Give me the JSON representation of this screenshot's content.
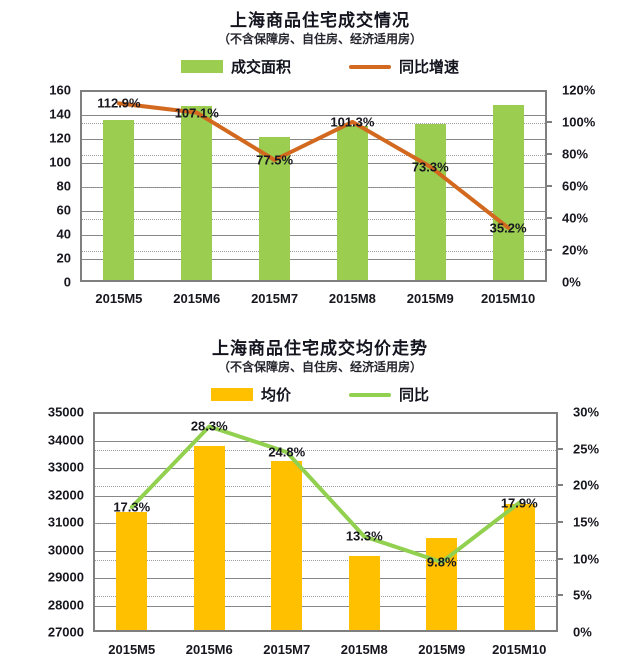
{
  "chart_data": [
    {
      "type": "bar+line",
      "title": "上海商品住宅成交情况",
      "subtitle": "（不含保障房、自住房、经济适用房）",
      "categories": [
        "2015M5",
        "2015M6",
        "2015M7",
        "2015M8",
        "2015M9",
        "2015M10"
      ],
      "series": [
        {
          "name": "成交面积",
          "type": "bar",
          "axis": "left",
          "color": "#9ACD50",
          "values": [
            133,
            145,
            119,
            128,
            130,
            146
          ]
        },
        {
          "name": "同比增速",
          "type": "line",
          "axis": "right",
          "color": "#D2691E",
          "values": [
            112.9,
            107.1,
            77.5,
            101.3,
            73.3,
            35.2
          ],
          "point_labels": [
            "112.9%",
            "107.1%",
            "77.5%",
            "101.3%",
            "73.3%",
            "35.2%"
          ]
        }
      ],
      "left_axis": {
        "min": 0,
        "max": 160,
        "step": 20,
        "labels": [
          "0",
          "20",
          "40",
          "60",
          "80",
          "100",
          "120",
          "140",
          "160"
        ]
      },
      "right_axis": {
        "min": 0,
        "max": 120,
        "step": 20,
        "labels": [
          "0%",
          "20%",
          "40%",
          "60%",
          "80%",
          "100%",
          "120%"
        ]
      },
      "legend_position": "top",
      "grid": true
    },
    {
      "type": "bar+line",
      "title": "上海商品住宅成交均价走势",
      "subtitle": "（不含保障房、自住房、经济适用房）",
      "categories": [
        "2015M5",
        "2015M6",
        "2015M7",
        "2015M8",
        "2015M9",
        "2015M10"
      ],
      "series": [
        {
          "name": "均价",
          "type": "bar",
          "axis": "left",
          "color": "#FFC000",
          "values": [
            31300,
            33700,
            33150,
            29700,
            30350,
            31600
          ]
        },
        {
          "name": "同比",
          "type": "line",
          "axis": "right",
          "color": "#92D050",
          "values": [
            17.3,
            28.3,
            24.8,
            13.3,
            9.8,
            17.9
          ],
          "point_labels": [
            "17.3%",
            "28.3%",
            "24.8%",
            "13.3%",
            "9.8%",
            "17.9%"
          ]
        }
      ],
      "left_axis": {
        "min": 27000,
        "max": 35000,
        "step": 1000,
        "labels": [
          "27000",
          "28000",
          "29000",
          "30000",
          "31000",
          "32000",
          "33000",
          "34000",
          "35000"
        ]
      },
      "right_axis": {
        "min": 0,
        "max": 30,
        "step": 5,
        "labels": [
          "0%",
          "5%",
          "10%",
          "15%",
          "20%",
          "25%",
          "30%"
        ]
      },
      "legend_position": "top",
      "grid": true
    }
  ],
  "colors": {
    "grid_solid": "#878787",
    "grid_dotted": "#9d9d9d",
    "plot_border": "#7f7f7f",
    "text": "#17171f"
  }
}
